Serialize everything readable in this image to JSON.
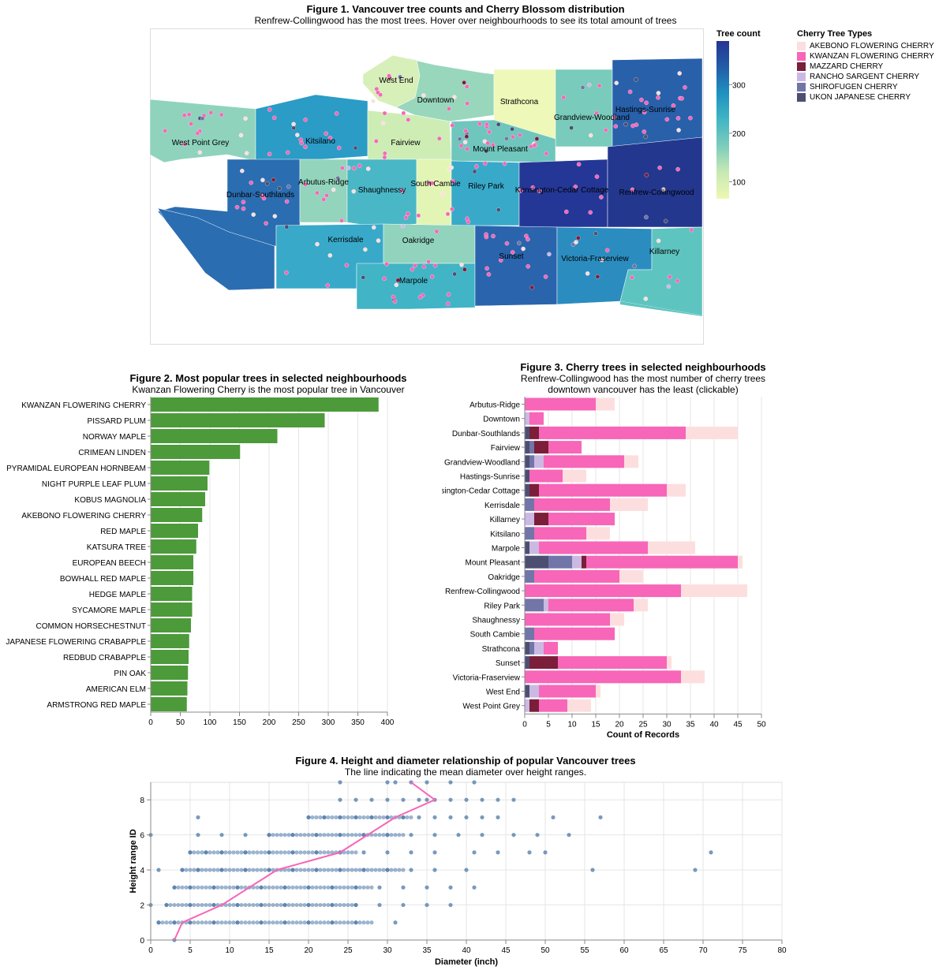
{
  "fig1": {
    "title": "Figure 1. Vancouver tree counts and Cherry Blossom distribution",
    "subtitle": "Renfrew-Collingwood has the most trees. Hover over neighbourhoods to see its total amount of trees",
    "gradient_legend": {
      "title": "Tree count",
      "ticks": [
        300,
        200,
        100
      ],
      "colors": [
        "#edf8b1",
        "#c7e9b4",
        "#7fcdbb",
        "#41b6c4",
        "#1d91c0",
        "#225ea8",
        "#253494"
      ]
    },
    "type_legend": {
      "title": "Cherry Tree Types",
      "items": [
        {
          "label": "AKEBONO FLOWERING CHERRY",
          "color": "#fddede"
        },
        {
          "label": "KWANZAN FLOWERING CHERRY",
          "color": "#f766b8"
        },
        {
          "label": "MAZZARD CHERRY",
          "color": "#7b1e3a"
        },
        {
          "label": "RANCHO SARGENT CHERRY",
          "color": "#cbb9e3"
        },
        {
          "label": "SHIROFUGEN CHERRY",
          "color": "#7275a8"
        },
        {
          "label": "UKON JAPANESE CHERRY",
          "color": "#4d4f72"
        }
      ]
    },
    "neighbourhoods": [
      {
        "name": "West End",
        "color": "#d7efb9"
      },
      {
        "name": "Downtown",
        "color": "#98d7bc"
      },
      {
        "name": "Strathcona",
        "color": "#eef8b8"
      },
      {
        "name": "Grandview-Woodland",
        "color": "#79cbbb"
      },
      {
        "name": "Hastings-Sunrise",
        "color": "#2860aa"
      },
      {
        "name": "West Point Grey",
        "color": "#8fd3bc"
      },
      {
        "name": "Kitsilano",
        "color": "#2a9cc6"
      },
      {
        "name": "Fairview",
        "color": "#cdedb5"
      },
      {
        "name": "Mount Pleasant",
        "color": "#6fc6bd"
      },
      {
        "name": "Dunbar-Southlands",
        "color": "#2a6db1"
      },
      {
        "name": "Arbutus-Ridge",
        "color": "#93d4bc"
      },
      {
        "name": "Shaughnessy",
        "color": "#4ab7c6"
      },
      {
        "name": "South Cambie",
        "color": "#e3f5b5"
      },
      {
        "name": "Riley Park",
        "color": "#38a9c9"
      },
      {
        "name": "Kensington-Cedar Cottage",
        "color": "#243797"
      },
      {
        "name": "Renfrew-Collingwood",
        "color": "#23378f"
      },
      {
        "name": "Kerrisdale",
        "color": "#38a9c9"
      },
      {
        "name": "Oakridge",
        "color": "#91d3bc"
      },
      {
        "name": "Marpole",
        "color": "#41b4c6"
      },
      {
        "name": "Sunset",
        "color": "#2a64ad"
      },
      {
        "name": "Victoria-Fraserview",
        "color": "#2b8cc0"
      },
      {
        "name": "Killarney",
        "color": "#5ec4bf"
      }
    ]
  },
  "fig2": {
    "title": "Figure 2. Most popular trees in selected neighbourhoods",
    "subtitle": "Kwanzan Flowering Cherry is the most popular tree in Vancouver",
    "bar_color": "#4c9a3a",
    "xticks": [
      0,
      50,
      100,
      150,
      200,
      250,
      300,
      350,
      400
    ]
  },
  "fig3": {
    "title": "Figure 3. Cherry trees in selected neighbourhoods",
    "subtitle_line1": "Renfrew-Collingwood has the most number of cherry trees",
    "subtitle_line2": "downtown vancouver has the least (clickable)",
    "xlabel": "Count of Records",
    "xticks": [
      0,
      5,
      10,
      15,
      20,
      25,
      30,
      35,
      40,
      45,
      50
    ]
  },
  "fig4": {
    "title": "Figure 4. Height and diameter relationship of popular Vancouver trees",
    "subtitle": "The line indicating the mean diameter over height ranges.",
    "xlabel": "Diameter (inch)",
    "ylabel": "Height range ID",
    "xticks": [
      0,
      5,
      10,
      15,
      20,
      25,
      30,
      35,
      40,
      45,
      50,
      55,
      60,
      65,
      70,
      75,
      80
    ],
    "yticks": [
      0,
      2,
      4,
      6,
      8
    ],
    "point_color": "#4c78a8",
    "line_color": "#f766b8"
  },
  "chart_data": [
    {
      "type": "bar",
      "orientation": "horizontal",
      "title": "Figure 2. Most popular trees in selected neighbourhoods",
      "categories": [
        "KWANZAN FLOWERING CHERRY",
        "PISSARD PLUM",
        "NORWAY MAPLE",
        "CRIMEAN LINDEN",
        "PYRAMIDAL EUROPEAN HORNBEAM",
        "NIGHT PURPLE LEAF PLUM",
        "KOBUS MAGNOLIA",
        "AKEBONO FLOWERING CHERRY",
        "RED MAPLE",
        "KATSURA TREE",
        "EUROPEAN BEECH",
        "BOWHALL RED MAPLE",
        "HEDGE MAPLE",
        "SYCAMORE MAPLE",
        "COMMON HORSECHESTNUT",
        "JAPANESE FLOWERING CRABAPPLE",
        "REDBUD CRABAPPLE",
        "PIN OAK",
        "AMERICAN ELM",
        "ARMSTRONG RED MAPLE"
      ],
      "values": [
        385,
        294,
        214,
        151,
        99,
        96,
        92,
        87,
        80,
        77,
        72,
        72,
        70,
        70,
        68,
        65,
        64,
        63,
        62,
        61
      ],
      "xlim": [
        0,
        400
      ]
    },
    {
      "type": "bar",
      "orientation": "horizontal",
      "stacked": true,
      "title": "Figure 3. Cherry trees in selected neighbourhoods",
      "xlabel": "Count of Records",
      "xlim": [
        0,
        50
      ],
      "categories": [
        "Arbutus-Ridge",
        "Downtown",
        "Dunbar-Southlands",
        "Fairview",
        "Grandview-Woodland",
        "Hastings-Sunrise",
        "Kensington-Cedar Cottage",
        "Kerrisdale",
        "Killarney",
        "Kitsilano",
        "Marpole",
        "Mount Pleasant",
        "Oakridge",
        "Renfrew-Collingwood",
        "Riley Park",
        "Shaughnessy",
        "South Cambie",
        "Strathcona",
        "Sunset",
        "Victoria-Fraserview",
        "West End",
        "West Point Grey"
      ],
      "series": [
        {
          "name": "UKON JAPANESE CHERRY",
          "color": "#4d4f72",
          "values": [
            0,
            0,
            1,
            1,
            1,
            1,
            1,
            0,
            0,
            0,
            1,
            5,
            0,
            0,
            0,
            0,
            0,
            1,
            1,
            0,
            1,
            0
          ]
        },
        {
          "name": "SHIROFUGEN CHERRY",
          "color": "#7275a8",
          "values": [
            0,
            0,
            0,
            1,
            1,
            0,
            0,
            2,
            0,
            2,
            0,
            5,
            2,
            0,
            4,
            0,
            2,
            1,
            0,
            0,
            0,
            0
          ]
        },
        {
          "name": "RANCHO SARGENT CHERRY",
          "color": "#cbb9e3",
          "values": [
            0,
            1,
            0,
            0,
            2,
            0,
            0,
            0,
            2,
            0,
            2,
            2,
            0,
            0,
            1,
            0,
            0,
            2,
            0,
            0,
            2,
            1
          ]
        },
        {
          "name": "MAZZARD CHERRY",
          "color": "#7b1e3a",
          "values": [
            0,
            0,
            2,
            3,
            0,
            0,
            2,
            0,
            3,
            0,
            0,
            1,
            0,
            0,
            0,
            0,
            0,
            0,
            6,
            0,
            0,
            2
          ]
        },
        {
          "name": "KWANZAN FLOWERING CHERRY",
          "color": "#f766b8",
          "values": [
            15,
            3,
            31,
            7,
            17,
            7,
            27,
            16,
            14,
            11,
            23,
            32,
            18,
            33,
            18,
            18,
            17,
            3,
            23,
            33,
            12,
            6
          ]
        },
        {
          "name": "AKEBONO FLOWERING CHERRY",
          "color": "#fddede",
          "values": [
            4,
            0,
            11,
            0,
            3,
            5,
            4,
            8,
            0,
            5,
            10,
            1,
            5,
            14,
            3,
            3,
            0,
            0,
            1,
            5,
            1,
            5
          ]
        }
      ]
    },
    {
      "type": "scatter",
      "title": "Figure 4. Height and diameter relationship of popular Vancouver trees",
      "xlabel": "Diameter (inch)",
      "ylabel": "Height range ID",
      "xlim": [
        0,
        80
      ],
      "ylim": [
        0,
        9
      ],
      "points": [
        [
          24,
          9
        ],
        [
          30,
          9
        ],
        [
          31,
          9
        ],
        [
          33,
          9
        ],
        [
          35,
          9
        ],
        [
          38,
          9
        ],
        [
          41,
          9
        ],
        [
          24,
          8
        ],
        [
          26,
          8
        ],
        [
          28,
          8
        ],
        [
          30,
          8
        ],
        [
          32,
          8
        ],
        [
          34,
          8
        ],
        [
          35,
          8
        ],
        [
          36,
          8
        ],
        [
          38,
          8
        ],
        [
          40,
          8
        ],
        [
          42,
          8
        ],
        [
          44,
          8
        ],
        [
          46,
          8
        ],
        [
          20,
          7
        ],
        [
          22,
          7
        ],
        [
          24,
          7
        ],
        [
          26,
          7
        ],
        [
          28,
          7
        ],
        [
          30,
          7
        ],
        [
          32,
          7
        ],
        [
          34,
          7
        ],
        [
          36,
          7
        ],
        [
          38,
          7
        ],
        [
          40,
          7
        ],
        [
          42,
          7
        ],
        [
          44,
          7
        ],
        [
          51,
          7
        ],
        [
          57,
          7
        ],
        [
          6,
          7
        ],
        [
          0,
          6
        ],
        [
          6,
          6
        ],
        [
          9,
          6
        ],
        [
          12,
          6
        ],
        [
          15,
          6
        ],
        [
          18,
          6
        ],
        [
          21,
          6
        ],
        [
          24,
          6
        ],
        [
          27,
          6
        ],
        [
          30,
          6
        ],
        [
          33,
          6
        ],
        [
          36,
          6
        ],
        [
          39,
          6
        ],
        [
          42,
          6
        ],
        [
          46,
          6
        ],
        [
          49,
          6
        ],
        [
          53,
          6
        ],
        [
          5,
          5
        ],
        [
          7,
          5
        ],
        [
          9,
          5
        ],
        [
          12,
          5
        ],
        [
          15,
          5
        ],
        [
          18,
          5
        ],
        [
          21,
          5
        ],
        [
          24,
          5
        ],
        [
          27,
          5
        ],
        [
          30,
          5
        ],
        [
          33,
          5
        ],
        [
          36,
          5
        ],
        [
          41,
          5
        ],
        [
          44,
          5
        ],
        [
          48,
          5
        ],
        [
          50,
          5
        ],
        [
          71,
          5
        ],
        [
          1,
          4
        ],
        [
          4,
          4
        ],
        [
          6,
          4
        ],
        [
          9,
          4
        ],
        [
          12,
          4
        ],
        [
          15,
          4
        ],
        [
          18,
          4
        ],
        [
          21,
          4
        ],
        [
          24,
          4
        ],
        [
          27,
          4
        ],
        [
          30,
          4
        ],
        [
          33,
          4
        ],
        [
          36,
          4
        ],
        [
          40,
          4
        ],
        [
          56,
          4
        ],
        [
          69,
          4
        ],
        [
          3,
          3
        ],
        [
          5,
          3
        ],
        [
          8,
          3
        ],
        [
          11,
          3
        ],
        [
          14,
          3
        ],
        [
          17,
          3
        ],
        [
          20,
          3
        ],
        [
          23,
          3
        ],
        [
          26,
          3
        ],
        [
          29,
          3
        ],
        [
          32,
          3
        ],
        [
          35,
          3
        ],
        [
          38,
          3
        ],
        [
          41,
          3
        ],
        [
          0,
          2
        ],
        [
          2,
          2
        ],
        [
          5,
          2
        ],
        [
          8,
          2
        ],
        [
          11,
          2
        ],
        [
          14,
          2
        ],
        [
          17,
          2
        ],
        [
          20,
          2
        ],
        [
          23,
          2
        ],
        [
          26,
          2
        ],
        [
          29,
          2
        ],
        [
          32,
          2
        ],
        [
          35,
          2
        ],
        [
          38,
          2
        ],
        [
          1,
          1
        ],
        [
          3,
          1
        ],
        [
          5,
          1
        ],
        [
          8,
          1
        ],
        [
          11,
          1
        ],
        [
          14,
          1
        ],
        [
          17,
          1
        ],
        [
          20,
          1
        ],
        [
          23,
          1
        ],
        [
          26,
          1
        ],
        [
          31,
          1
        ],
        [
          3,
          0
        ]
      ],
      "mean_line": {
        "x": [
          3,
          4,
          9,
          16,
          24,
          31,
          36,
          33
        ],
        "y": [
          0,
          1,
          2,
          4,
          5,
          7,
          8,
          9
        ]
      }
    }
  ]
}
